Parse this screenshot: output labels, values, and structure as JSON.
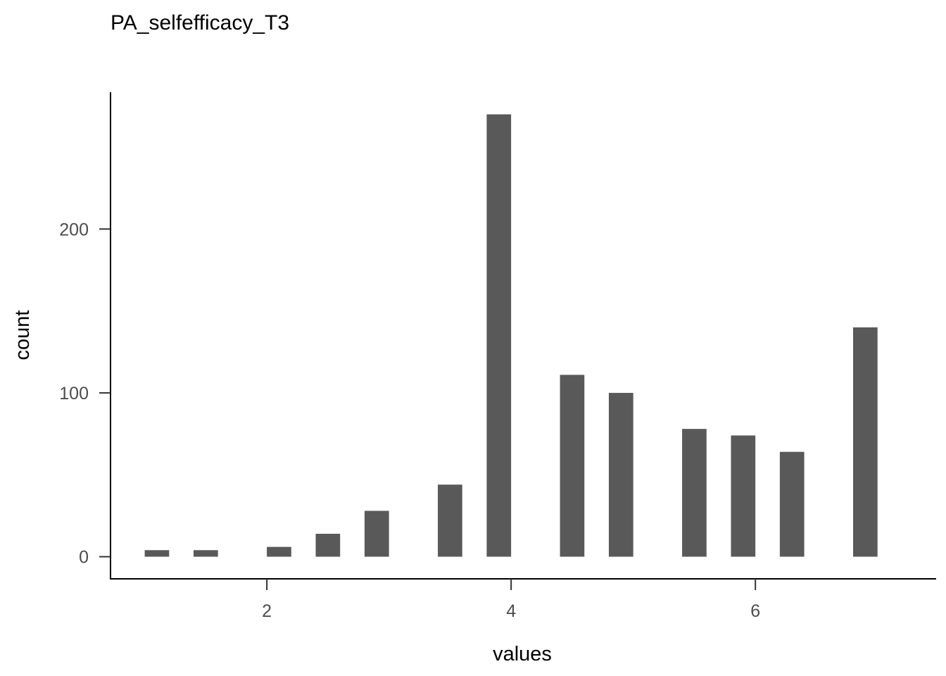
{
  "chart_data": {
    "type": "bar",
    "title": "PA_selfefficacy_T3",
    "xlabel": "values",
    "ylabel": "count",
    "bar_color": "#595959",
    "x": [
      1.1,
      1.3,
      1.5,
      1.7,
      1.9,
      2.1,
      2.3,
      2.5,
      2.7,
      2.9,
      3.1,
      3.3,
      3.5,
      3.7,
      3.9,
      4.1,
      4.3,
      4.5,
      4.7,
      4.9,
      5.1,
      5.3,
      5.5,
      5.7,
      5.9,
      6.1,
      6.3,
      6.5,
      6.7,
      6.9,
      7.1
    ],
    "values": [
      4,
      0,
      4,
      0,
      0,
      6,
      0,
      14,
      0,
      28,
      0,
      0,
      44,
      0,
      270,
      0,
      0,
      111,
      0,
      100,
      0,
      0,
      78,
      0,
      74,
      0,
      64,
      0,
      0,
      140,
      0
    ],
    "bin_width": 0.2,
    "xlim": [
      0.72,
      7.48
    ],
    "ylim": [
      -13.5,
      283.5
    ],
    "x_ticks": [
      2,
      4,
      6
    ],
    "y_ticks": [
      0,
      100,
      200
    ],
    "grid": false,
    "legend": "none"
  }
}
